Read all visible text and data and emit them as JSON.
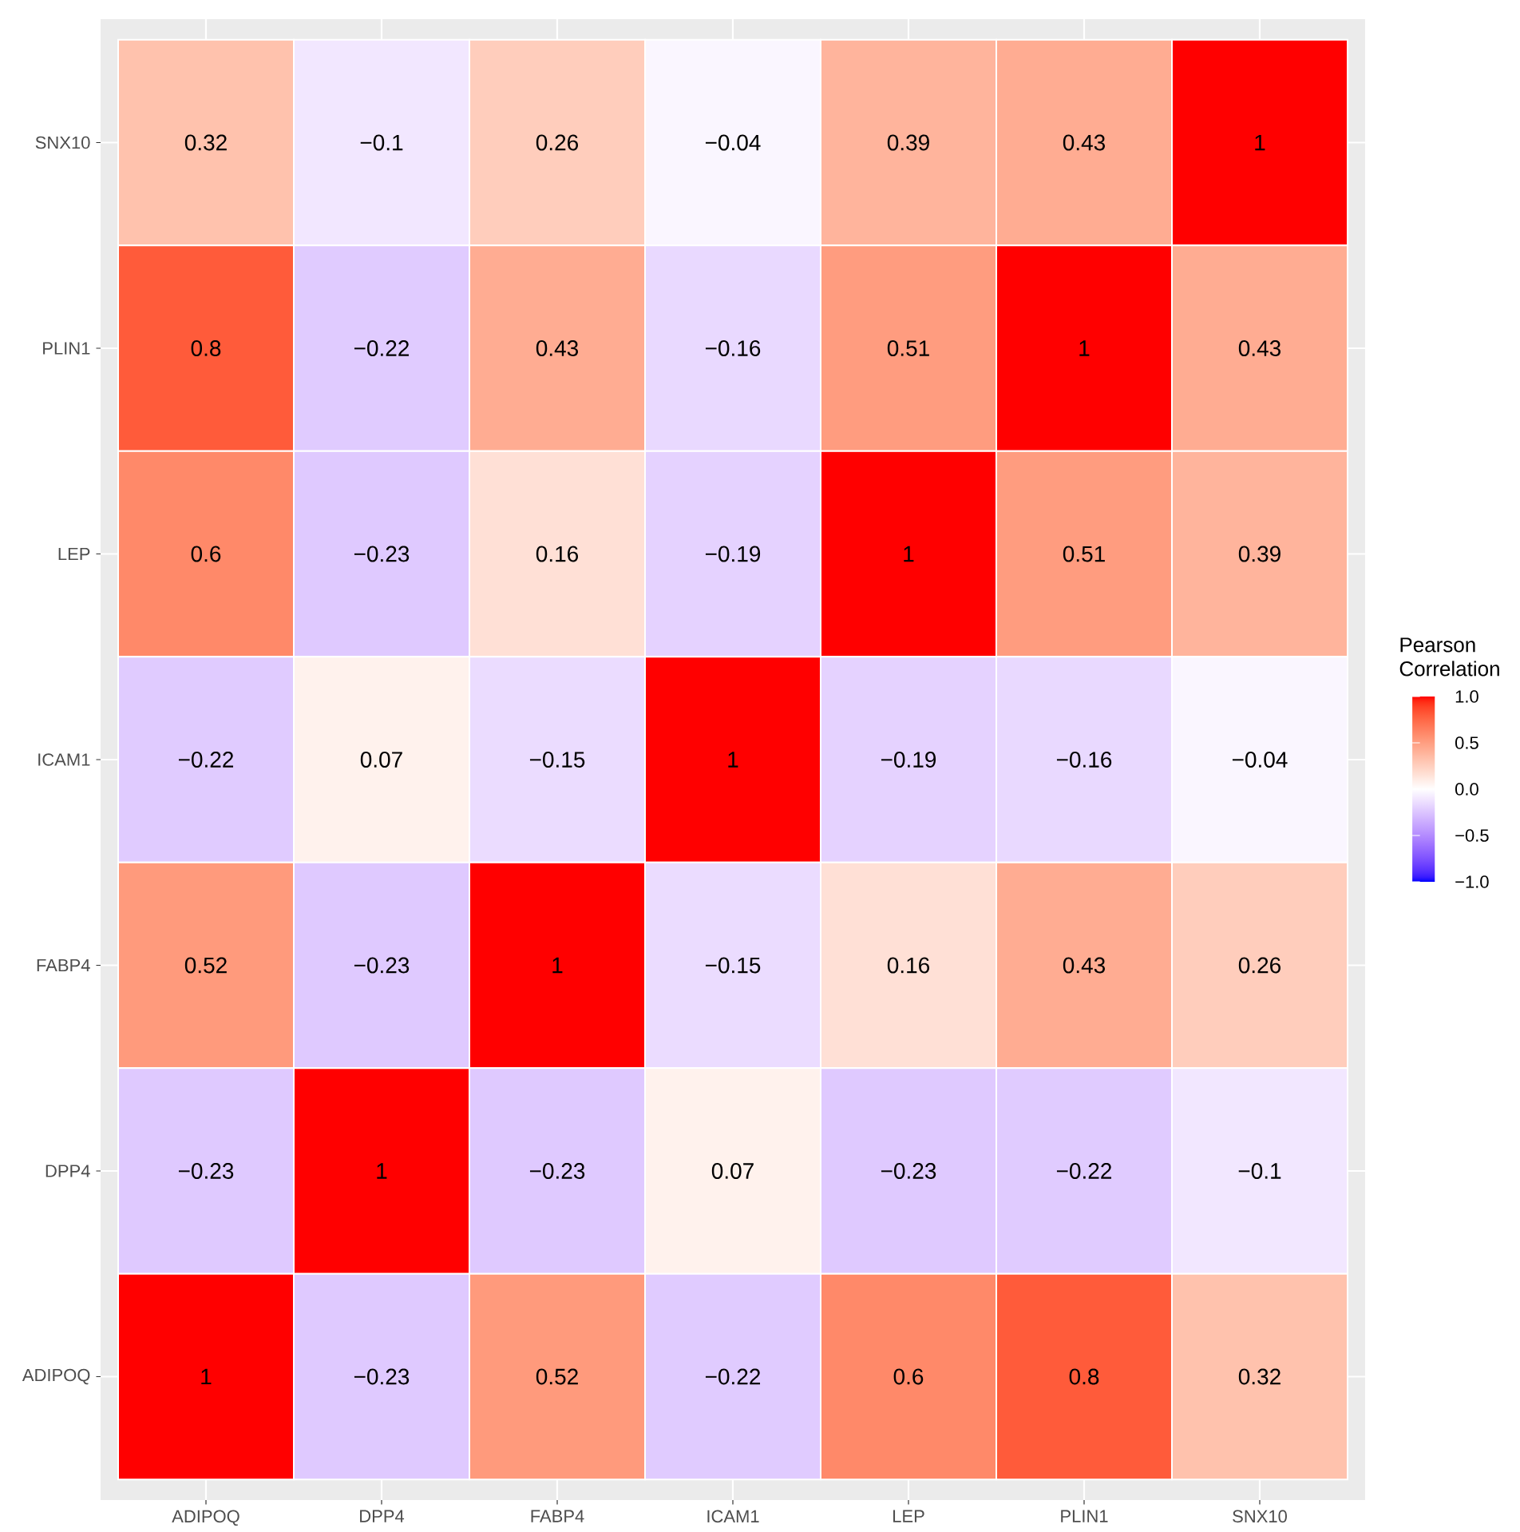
{
  "chart_data": {
    "type": "heatmap",
    "categories": [
      "ADIPOQ",
      "DPP4",
      "FABP4",
      "ICAM1",
      "LEP",
      "PLIN1",
      "SNX10"
    ],
    "y_categories": [
      "SNX10",
      "PLIN1",
      "LEP",
      "ICAM1",
      "FABP4",
      "DPP4",
      "ADIPOQ"
    ],
    "cells": [
      [
        0.32,
        -0.1,
        0.26,
        -0.04,
        0.39,
        0.43,
        1
      ],
      [
        0.8,
        -0.22,
        0.43,
        -0.16,
        0.51,
        1,
        0.43
      ],
      [
        0.6,
        -0.23,
        0.16,
        -0.19,
        1,
        0.51,
        0.39
      ],
      [
        -0.22,
        0.07,
        -0.15,
        1,
        -0.19,
        -0.16,
        -0.04
      ],
      [
        0.52,
        -0.23,
        1,
        -0.15,
        0.16,
        0.43,
        0.26
      ],
      [
        -0.23,
        1,
        -0.23,
        0.07,
        -0.23,
        -0.22,
        -0.1
      ],
      [
        1,
        -0.23,
        0.52,
        -0.22,
        0.6,
        0.8,
        0.32
      ]
    ],
    "cell_labels": [
      [
        "0.32",
        "−0.1",
        "0.26",
        "−0.04",
        "0.39",
        "0.43",
        "1"
      ],
      [
        "0.8",
        "−0.22",
        "0.43",
        "−0.16",
        "0.51",
        "1",
        "0.43"
      ],
      [
        "0.6",
        "−0.23",
        "0.16",
        "−0.19",
        "1",
        "0.51",
        "0.39"
      ],
      [
        "−0.22",
        "0.07",
        "−0.15",
        "1",
        "−0.19",
        "−0.16",
        "−0.04"
      ],
      [
        "0.52",
        "−0.23",
        "1",
        "−0.15",
        "0.16",
        "0.43",
        "0.26"
      ],
      [
        "−0.23",
        "1",
        "−0.23",
        "0.07",
        "−0.23",
        "−0.22",
        "−0.1"
      ],
      [
        "1",
        "−0.23",
        "0.52",
        "−0.22",
        "0.6",
        "0.8",
        "0.32"
      ]
    ],
    "clim": [
      -1,
      1
    ],
    "cticks": [
      {
        "value": -1,
        "label": "−1.0"
      },
      {
        "value": -0.5,
        "label": "−0.5"
      },
      {
        "value": 0,
        "label": "0.0"
      },
      0.5,
      {
        "value": 1,
        "label": "1.0"
      }
    ],
    "clabel": "Pearson Correlation",
    "grid": true
  }
}
